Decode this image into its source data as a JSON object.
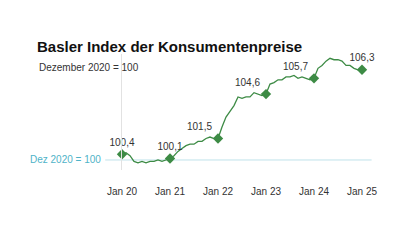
{
  "chart_data": {
    "type": "line",
    "title": "Basler Index der Konsumentenpreise",
    "subtitle": "Dezember 2020 = 100",
    "categories": [
      "Jan 20",
      null,
      null,
      null,
      null,
      null,
      null,
      null,
      null,
      null,
      null,
      null,
      "Jan 21",
      null,
      null,
      null,
      null,
      null,
      null,
      null,
      null,
      null,
      null,
      null,
      "Jan 22",
      null,
      null,
      null,
      null,
      null,
      null,
      null,
      null,
      null,
      null,
      null,
      "Jan 23",
      null,
      null,
      null,
      null,
      null,
      null,
      null,
      null,
      null,
      null,
      null,
      "Jan 24",
      null,
      null,
      null,
      null,
      null,
      null,
      null,
      null,
      null,
      null,
      null,
      "Jan 25"
    ],
    "values": [
      100.4,
      100.5,
      100.3,
      99.9,
      99.8,
      99.9,
      99.8,
      99.9,
      99.9,
      100.0,
      99.9,
      100.0,
      100.1,
      100.3,
      100.6,
      100.8,
      101.0,
      101.1,
      101.1,
      101.3,
      101.3,
      101.5,
      101.6,
      101.5,
      101.5,
      102.3,
      103.0,
      103.4,
      103.8,
      104.4,
      104.3,
      104.4,
      104.4,
      104.7,
      104.6,
      104.5,
      104.6,
      105.3,
      105.4,
      105.6,
      105.6,
      105.8,
      105.8,
      105.9,
      105.7,
      105.8,
      105.7,
      105.6,
      105.7,
      106.4,
      106.6,
      106.9,
      107.1,
      107.0,
      107.0,
      106.9,
      106.6,
      106.6,
      106.4,
      106.3,
      106.3
    ],
    "value_labels": [
      "100,4",
      null,
      null,
      null,
      null,
      null,
      null,
      null,
      null,
      null,
      null,
      null,
      "100,1",
      null,
      null,
      null,
      null,
      null,
      null,
      null,
      null,
      null,
      null,
      null,
      "101,5",
      null,
      null,
      null,
      null,
      null,
      null,
      null,
      null,
      null,
      null,
      null,
      "104,6",
      null,
      null,
      null,
      null,
      null,
      null,
      null,
      null,
      null,
      null,
      null,
      "105,7",
      null,
      null,
      null,
      null,
      null,
      null,
      null,
      null,
      null,
      null,
      null,
      "106,3"
    ],
    "color": "#3d8b45",
    "marker": "diamond",
    "data_labels": true,
    "annotations": [
      {
        "text": "Dez 2020 = 100",
        "y": 100
      }
    ],
    "ylim": [
      99.3,
      107.4
    ],
    "yticks": [],
    "grid": false,
    "tick_labels": "x"
  }
}
